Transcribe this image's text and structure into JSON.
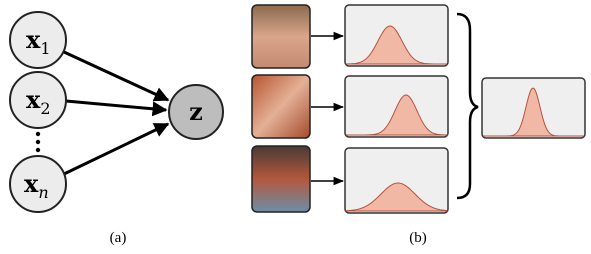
{
  "nodes": [
    {
      "label": "x",
      "subscript": "1"
    },
    {
      "label": "x",
      "subscript": "2"
    },
    {
      "label": "x",
      "subscript": "n"
    },
    {
      "label": "z"
    }
  ],
  "captions": [
    "(a)",
    "(b)"
  ]
}
